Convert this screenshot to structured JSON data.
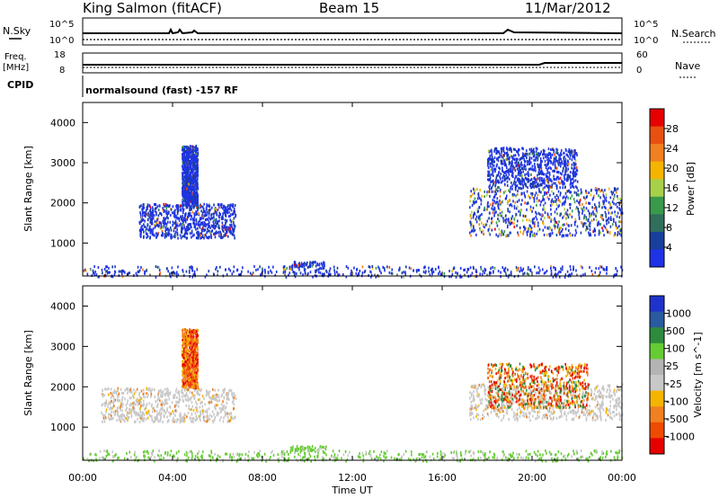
{
  "header": {
    "station": "King Salmon (fitACF)",
    "beam": "Beam 15",
    "date": "11/Mar/2012"
  },
  "top_panels": {
    "nsky_label": "N.Sky",
    "nsky_ticks": [
      "10^5",
      "10^0"
    ],
    "nsearch_label": "N.Search",
    "nsearch_ticks": [
      "10^5",
      "10^0"
    ],
    "freq_label": "Freq.",
    "freq_unit": "[MHz]",
    "freq_ticks": [
      "18",
      "8"
    ],
    "nave_label": "Nave",
    "nave_ticks": [
      "60",
      "0"
    ],
    "cpid_label": "CPID",
    "cpid_text": "normalsound (fast) -157 RF"
  },
  "colors": {
    "power_scale": [
      "#1f33e6",
      "#173f9c",
      "#2f6f5c",
      "#3a9a4c",
      "#a9d04a",
      "#f4b400",
      "#f08020",
      "#e85010",
      "#e60000"
    ],
    "velocity_scale": [
      "#e60000",
      "#ee4a00",
      "#f08020",
      "#f4b400",
      "#c8c8c8",
      "#b4b4b4",
      "#66cc33",
      "#2e8b3e",
      "#2a5aa0",
      "#1f33cc"
    ],
    "scatter_gray": "#c8c8c8"
  },
  "chart_data": [
    {
      "type": "heatmap",
      "title": "",
      "xlabel": "",
      "ylabel": "Slant Range [km]",
      "x_range_hours": [
        0,
        24
      ],
      "xticks": [
        "00:00",
        "04:00",
        "08:00",
        "12:00",
        "16:00",
        "20:00",
        "00:00"
      ],
      "ylim": [
        180,
        4500
      ],
      "yticks": [
        1000,
        2000,
        3000,
        4000
      ],
      "colorbar_label": "Power [dB]",
      "colorbar_ticks": [
        "28",
        "24",
        "20",
        "16",
        "12",
        "8",
        "4"
      ],
      "colorbar_range": [
        0,
        30
      ],
      "regions": [
        {
          "x": [
            2.5,
            6.8
          ],
          "y": [
            1150,
            2000
          ],
          "dominant": 6
        },
        {
          "x": [
            4.4,
            5.1
          ],
          "y": [
            2000,
            3450
          ],
          "dominant": 6
        },
        {
          "x": [
            17.2,
            24.0
          ],
          "y": [
            1200,
            2400
          ],
          "dominant": 8
        },
        {
          "x": [
            18.0,
            22.0
          ],
          "y": [
            2400,
            3400
          ],
          "dominant": 6
        },
        {
          "x": [
            0.0,
            24.0
          ],
          "y": [
            180,
            450
          ],
          "dominant": 6
        },
        {
          "x": [
            9.2,
            10.8
          ],
          "y": [
            440,
            560
          ],
          "dominant": 6
        }
      ]
    },
    {
      "type": "heatmap",
      "title": "",
      "xlabel": "Time UT",
      "ylabel": "Slant Range [km]",
      "x_range_hours": [
        0,
        24
      ],
      "xticks": [
        "00:00",
        "04:00",
        "08:00",
        "12:00",
        "16:00",
        "20:00",
        "00:00"
      ],
      "ylim": [
        180,
        4500
      ],
      "yticks": [
        1000,
        2000,
        3000,
        4000
      ],
      "colorbar_label": "Velocity [m s^-1]",
      "colorbar_ticks": [
        "1000",
        "500",
        "100",
        "25",
        "-25",
        "-100",
        "-500",
        "-1000"
      ],
      "regions": [
        {
          "x": [
            0.8,
            6.8
          ],
          "y": [
            1150,
            2000
          ],
          "dominant": "ground scatter"
        },
        {
          "x": [
            4.4,
            5.1
          ],
          "y": [
            2000,
            3450
          ],
          "dominant": "-100"
        },
        {
          "x": [
            17.2,
            24.0
          ],
          "y": [
            1200,
            2100
          ],
          "dominant": "ground scatter"
        },
        {
          "x": [
            18.0,
            22.5
          ],
          "y": [
            1500,
            2600
          ],
          "dominant": "-100"
        },
        {
          "x": [
            0.0,
            24.0
          ],
          "y": [
            180,
            450
          ],
          "dominant": "100"
        },
        {
          "x": [
            9.2,
            10.8
          ],
          "y": [
            440,
            560
          ],
          "dominant": "100"
        }
      ]
    }
  ]
}
